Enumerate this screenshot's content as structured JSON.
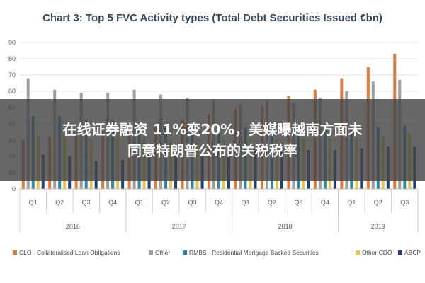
{
  "chart_data": {
    "type": "bar",
    "title": "Chart 3: Top 5 FVC Activity types (Total Debt Securities Issued €bn)",
    "ylim": [
      0,
      90
    ],
    "yticks": [
      0,
      10,
      20,
      30,
      40,
      50,
      60,
      70,
      80,
      90
    ],
    "grid": true,
    "legend_position": "bottom",
    "categories": [
      "Q1",
      "Q2",
      "Q3",
      "Q4",
      "Q1",
      "Q2",
      "Q3",
      "Q4",
      "Q1",
      "Q2",
      "Q3",
      "Q4",
      "Q1",
      "Q2",
      "Q3"
    ],
    "year_groups": [
      {
        "label": "2016",
        "span": 4
      },
      {
        "label": "2017",
        "span": 4
      },
      {
        "label": "2018",
        "span": 4
      },
      {
        "label": "2019",
        "span": 3
      }
    ],
    "series": [
      {
        "name": "CLO - Collateralised Loan Obligations",
        "color": "#e07b39",
        "values": [
          30,
          32,
          33,
          35,
          37,
          40,
          42,
          46,
          49,
          51,
          57,
          61,
          68,
          75,
          83
        ]
      },
      {
        "name": "Other",
        "color": "#9e9e9e",
        "values": [
          68,
          61,
          59,
          59,
          61,
          58,
          56,
          55,
          52,
          54,
          53,
          56,
          60,
          66,
          67
        ]
      },
      {
        "name": "RMBS - Residential Mortgage Backed Securities",
        "color": "#2e86ab",
        "values": [
          45,
          45,
          42,
          42,
          40,
          40,
          38,
          38,
          38,
          37,
          36,
          37,
          37,
          38,
          39
        ]
      },
      {
        "name": "Other CDO",
        "color": "#e8c34a",
        "values": [
          33,
          33,
          31,
          32,
          32,
          31,
          30,
          30,
          31,
          31,
          31,
          31,
          32,
          33,
          34
        ]
      },
      {
        "name": "ABCP",
        "color": "#1f3f7a",
        "values": [
          21,
          20,
          17,
          18,
          22,
          22,
          22,
          23,
          24,
          23,
          24,
          24,
          25,
          26,
          26
        ]
      }
    ]
  },
  "overlay": {
    "line1": "在线证券融资 11%变20%，美媒曝越南方面未",
    "line2": "同意特朗普公布的关税税率"
  }
}
